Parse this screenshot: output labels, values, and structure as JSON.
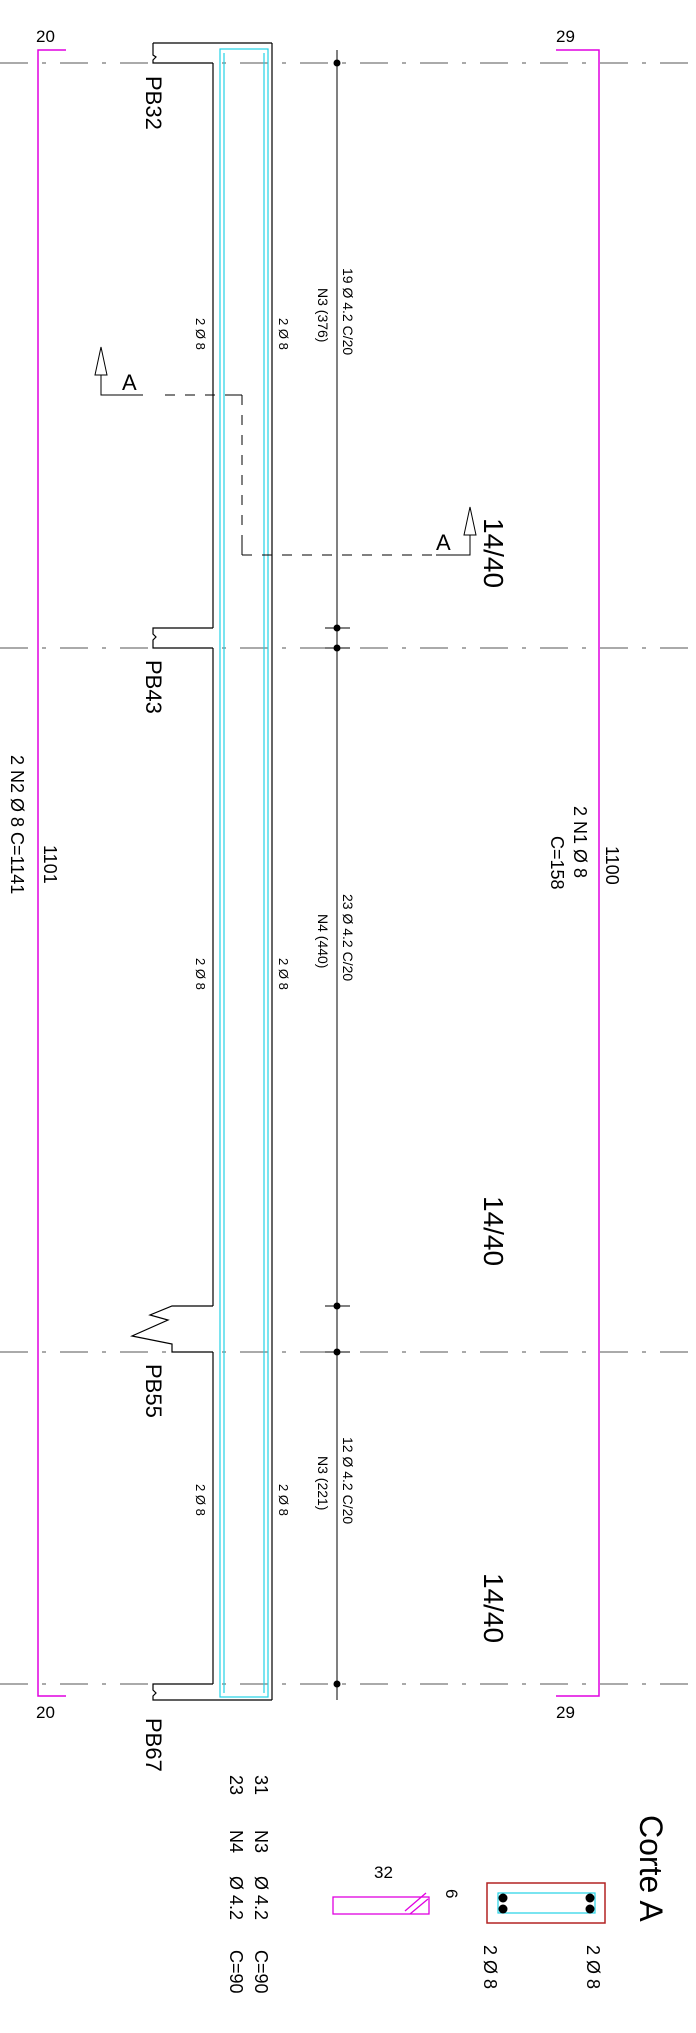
{
  "grid_numbers": {
    "top_left": "20",
    "top_right": "29",
    "bottom_left": "20",
    "bottom_right": "29"
  },
  "supports": [
    "PB32",
    "PB43",
    "PB55",
    "PB67"
  ],
  "beam_sizes": [
    "14/40",
    "14/40",
    "14/40"
  ],
  "section_marker": "A",
  "bars_text": [
    "2 Ø 8",
    "2 Ø 8",
    "2 Ø 8",
    "2 Ø 8",
    "2 Ø 8",
    "2 Ø 8"
  ],
  "stirrups": [
    {
      "count": "19 Ø 4.2 C/20",
      "ref": "N3  (376)"
    },
    {
      "count": "23 Ø 4.2 C/20",
      "ref": "N4  (440)"
    },
    {
      "count": "12 Ø 4.2 C/20",
      "ref": "N3  (221)"
    }
  ],
  "rebar_top": {
    "length": "1100",
    "desc": "2  N1  Ø 8",
    "cut": "C=158"
  },
  "rebar_bottom": {
    "length": "1101",
    "desc": "2  N2  Ø 8    C=1141"
  },
  "schedule": [
    {
      "qty": "31",
      "pos": "N3",
      "dia": "Ø 4.2",
      "len": "C=90"
    },
    {
      "qty": "23",
      "pos": "N4",
      "dia": "Ø 4.2",
      "len": "C=90"
    }
  ],
  "stirrup_dims": {
    "width": "32",
    "height": "6"
  },
  "section": {
    "title": "Corte A",
    "top_bars": "2 Ø 8",
    "bottom_bars": "2 Ø 8"
  },
  "colors": {
    "magenta": "#e000e0",
    "cyan": "#22d3e6",
    "section_red": "#b22222",
    "ink": "#000000"
  }
}
